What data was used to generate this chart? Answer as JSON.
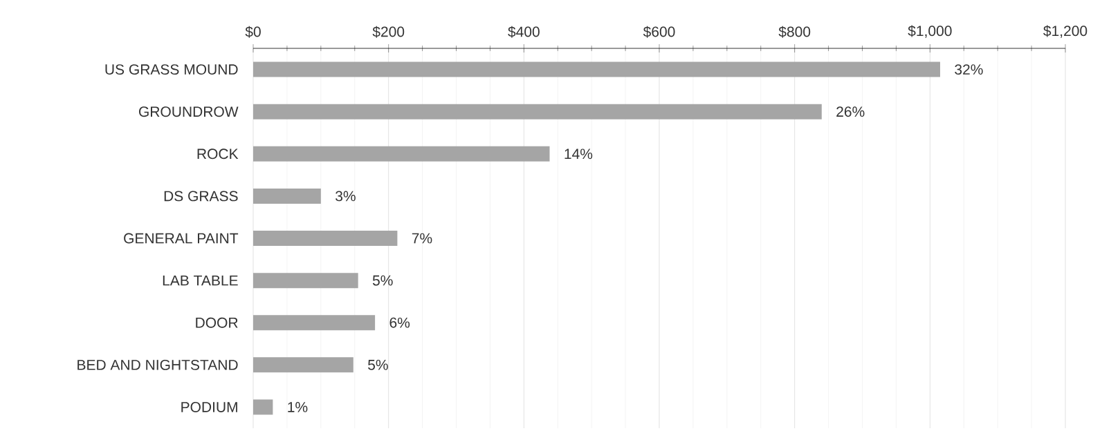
{
  "chart_data": {
    "type": "bar",
    "orientation": "horizontal",
    "categories": [
      "US GRASS MOUND",
      "GROUNDROW",
      "ROCK",
      "DS GRASS",
      "GENERAL PAINT",
      "LAB TABLE",
      "DOOR",
      "BED AND NIGHTSTAND",
      "PODIUM"
    ],
    "values": [
      1015,
      840,
      438,
      100,
      213,
      155,
      180,
      148,
      29
    ],
    "annotations": [
      {
        "text": "32%",
        "x": 1015,
        "y": "US GRASS MOUND"
      },
      {
        "text": "26%",
        "x": 840,
        "y": "GROUNDROW"
      },
      {
        "text": "14%",
        "x": 438,
        "y": "ROCK"
      },
      {
        "text": "3%",
        "x": 100,
        "y": "DS GRASS"
      },
      {
        "text": "7%",
        "x": 213,
        "y": "GENERAL PAINT"
      },
      {
        "text": "5%",
        "x": 155,
        "y": "LAB TABLE"
      },
      {
        "text": "6%",
        "x": 180,
        "y": "DOOR"
      },
      {
        "text": "5%",
        "x": 148,
        "y": "BED AND NIGHTSTAND"
      },
      {
        "text": "1%",
        "x": 29,
        "y": "PODIUM"
      }
    ],
    "color": "#a5a5a5",
    "xlim": [
      0,
      1200
    ],
    "xticks": [
      {
        "value": 0,
        "label": "$0"
      },
      {
        "value": 200,
        "label": "$200"
      },
      {
        "value": 400,
        "label": "$400"
      },
      {
        "value": 600,
        "label": "$600"
      },
      {
        "value": 800,
        "label": "$800"
      },
      {
        "value": 1000,
        "label": "$1,000"
      },
      {
        "value": 1200,
        "label": "$1,200"
      }
    ],
    "grid": "x"
  }
}
